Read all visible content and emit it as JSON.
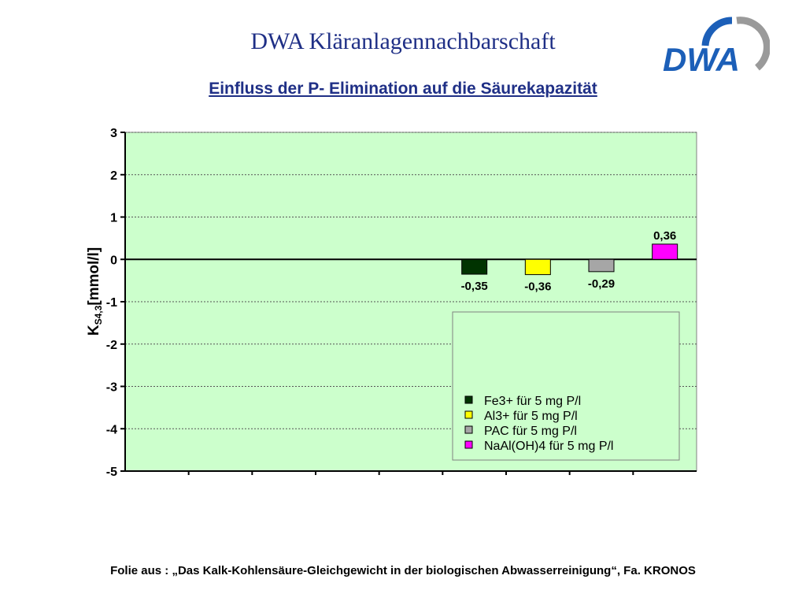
{
  "header": {
    "title": "DWA Kläranlagennachbarschaft",
    "subtitle": "Einfluss der P- Elimination auf die Säurekapazität",
    "logo_text": "DWA"
  },
  "footer": {
    "note": "Folie aus : „Das Kalk-Kohlensäure-Gleichgewicht in der biologischen Abwasserreinigung“, Fa. KRONOS"
  },
  "colors": {
    "title": "#1f2f86",
    "logo_blue": "#1c5fb8",
    "logo_gray": "#9a9a9a",
    "plot_background": "#ccffcc"
  },
  "chart_data": {
    "type": "bar",
    "ylabel_main": "K",
    "ylabel_sub": "S4,3",
    "ylabel_rest": "[mmol/l]",
    "ylim": [
      -5,
      3
    ],
    "yticks": [
      3,
      2,
      1,
      0,
      -1,
      -2,
      -3,
      -4,
      -5
    ],
    "grid": true,
    "legend_position": "bottom-right",
    "categories": [
      "",
      "",
      "",
      "",
      "",
      "",
      "",
      "",
      ""
    ],
    "series": [
      {
        "name": "Fe3+ für 5 mg P/l",
        "color": "#003300",
        "values": [
          null,
          null,
          null,
          null,
          null,
          -0.35,
          null,
          null,
          null
        ],
        "label": "-0,35"
      },
      {
        "name": "Al3+ für 5 mg P/l",
        "color": "#ffff00",
        "values": [
          null,
          null,
          null,
          null,
          null,
          null,
          -0.36,
          null,
          null
        ],
        "label": "-0,36"
      },
      {
        "name": "PAC für 5 mg P/l",
        "color": "#a6a6a6",
        "values": [
          null,
          null,
          null,
          null,
          null,
          null,
          null,
          -0.29,
          null
        ],
        "label": "-0,29"
      },
      {
        "name": "NaAl(OH)4 für 5 mg P/l",
        "color": "#ff00ff",
        "values": [
          null,
          null,
          null,
          null,
          null,
          null,
          null,
          null,
          0.36
        ],
        "label": "0,36"
      }
    ]
  }
}
